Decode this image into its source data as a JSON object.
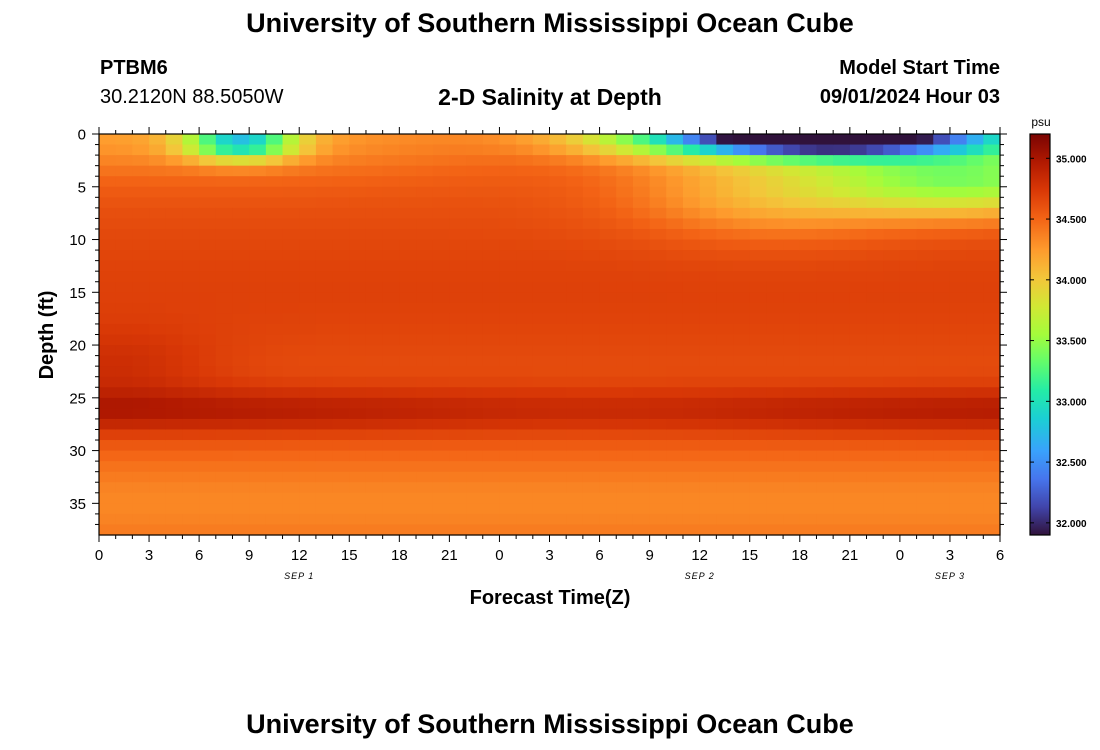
{
  "page": {
    "title_top": "University of Southern Mississippi Ocean Cube",
    "title_bottom": "University of Southern Mississippi Ocean Cube"
  },
  "station": {
    "id": "PTBM6",
    "coords": "30.2120N  88.5050W"
  },
  "model": {
    "start_label": "Model Start Time",
    "start_value": "09/01/2024 Hour 03"
  },
  "chart_data": {
    "type": "heatmap",
    "title": "2-D Salinity at Depth",
    "xlabel": "Forecast Time(Z)",
    "ylabel": "Depth (ft)",
    "x_ticks": [
      "0",
      "3",
      "6",
      "9",
      "12",
      "15",
      "18",
      "21",
      "0",
      "3",
      "6",
      "9",
      "12",
      "15",
      "18",
      "21",
      "0",
      "3",
      "6"
    ],
    "x_hours": [
      0,
      3,
      6,
      9,
      12,
      15,
      18,
      21,
      24,
      27,
      30,
      33,
      36,
      39,
      42,
      45,
      48,
      51,
      54
    ],
    "x_range": [
      0,
      54
    ],
    "y_ticks": [
      "0",
      "5",
      "10",
      "15",
      "20",
      "25",
      "30",
      "35"
    ],
    "y_values": [
      0,
      5,
      10,
      15,
      20,
      25,
      30,
      35
    ],
    "y_range": [
      0,
      38
    ],
    "date_labels": [
      {
        "text": "SEP 1",
        "hour": 12
      },
      {
        "text": "SEP 2",
        "hour": 36
      },
      {
        "text": "SEP 3",
        "hour": 51
      }
    ],
    "colorbar": {
      "unit": "psu",
      "range": [
        31.9,
        35.2
      ],
      "ticks": [
        "32.000",
        "32.500",
        "33.000",
        "33.500",
        "34.000",
        "34.500",
        "35.000"
      ],
      "tick_values": [
        32.0,
        32.5,
        33.0,
        33.5,
        34.0,
        34.5,
        35.0
      ]
    }
  }
}
